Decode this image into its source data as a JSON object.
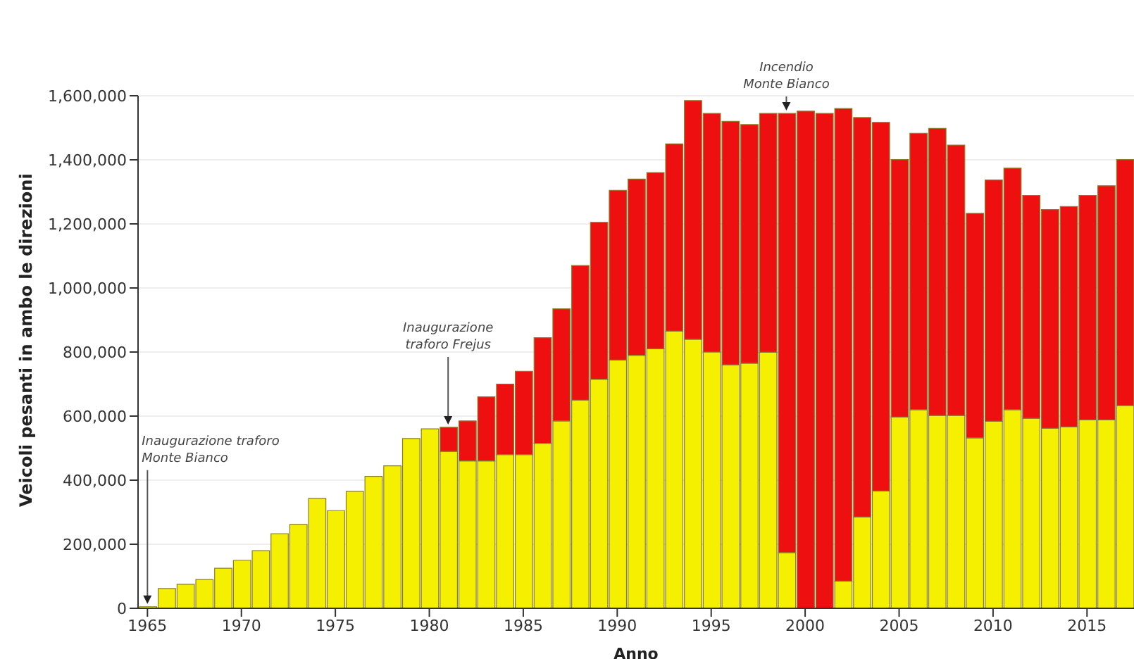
{
  "chart_data": {
    "type": "bar",
    "stacked": true,
    "xlabel": "Anno",
    "ylabel": "Veicoli pesanti in ambo le direzioni",
    "x": [
      1965,
      1966,
      1967,
      1968,
      1969,
      1970,
      1971,
      1972,
      1973,
      1974,
      1975,
      1976,
      1977,
      1978,
      1979,
      1980,
      1981,
      1982,
      1983,
      1984,
      1985,
      1986,
      1987,
      1988,
      1989,
      1990,
      1991,
      1992,
      1993,
      1994,
      1995,
      1996,
      1997,
      1998,
      1999,
      2000,
      2001,
      2002,
      2003,
      2004,
      2005,
      2006,
      2007,
      2008,
      2009,
      2010,
      2011,
      2012,
      2013,
      2014,
      2015,
      2016,
      2017
    ],
    "series": [
      {
        "color": "#f5ef00",
        "values": [
          5000,
          62000,
          75000,
          90000,
          125000,
          150000,
          180000,
          233000,
          262000,
          343000,
          305000,
          365000,
          412000,
          445000,
          530000,
          560000,
          490000,
          460000,
          460000,
          480000,
          480000,
          515000,
          585000,
          650000,
          715000,
          775000,
          790000,
          810000,
          865000,
          840000,
          800000,
          760000,
          765000,
          799000,
          174000,
          0,
          0,
          85000,
          285000,
          366000,
          597000,
          620000,
          602000,
          602000,
          532000,
          584000,
          620000,
          593000,
          562000,
          566000,
          588000,
          588000,
          633000
        ]
      },
      {
        "color": "#ee1010",
        "values": [
          0,
          0,
          0,
          0,
          0,
          0,
          0,
          0,
          0,
          0,
          0,
          0,
          0,
          0,
          0,
          0,
          75000,
          125000,
          200000,
          220000,
          260000,
          330000,
          350000,
          420000,
          490000,
          530000,
          550000,
          550000,
          585000,
          745000,
          745000,
          760000,
          745000,
          746000,
          1371000,
          1552000,
          1545000,
          1475000,
          1247000,
          1151000,
          804000,
          863000,
          896000,
          844000,
          701000,
          753000,
          754000,
          696000,
          683000,
          688000,
          701000,
          731000,
          768000
        ]
      }
    ],
    "xlim": [
      1964.5,
      2017.5
    ],
    "xticks": [
      1965,
      1970,
      1975,
      1980,
      1985,
      1990,
      1995,
      2000,
      2005,
      2010,
      2015
    ],
    "ylim": [
      0,
      1600000
    ],
    "yticks": [
      0,
      {
        "value": 200000,
        "label": "200,000"
      },
      {
        "value": 400000,
        "label": "400,000"
      },
      {
        "value": 600000,
        "label": "600,000"
      },
      {
        "value": 800000,
        "label": "800,000"
      },
      {
        "value": 1000000,
        "label": "1,000,000"
      },
      {
        "value": 1200000,
        "label": "1,200,000"
      },
      {
        "value": 1400000,
        "label": "1,400,000"
      },
      {
        "value": 1600000,
        "label": "1,600,000"
      }
    ],
    "grid": "y",
    "annotations": [
      {
        "text": "Inaugurazione traforo\nMonte Bianco",
        "x": 1965,
        "y": 5000
      },
      {
        "text": "Inaugurazione\ntraforo Frejus",
        "x": 1981,
        "y": 565000
      },
      {
        "text": "Incendio\nMonte Bianco",
        "x": 1999,
        "y": 1545000
      }
    ]
  }
}
